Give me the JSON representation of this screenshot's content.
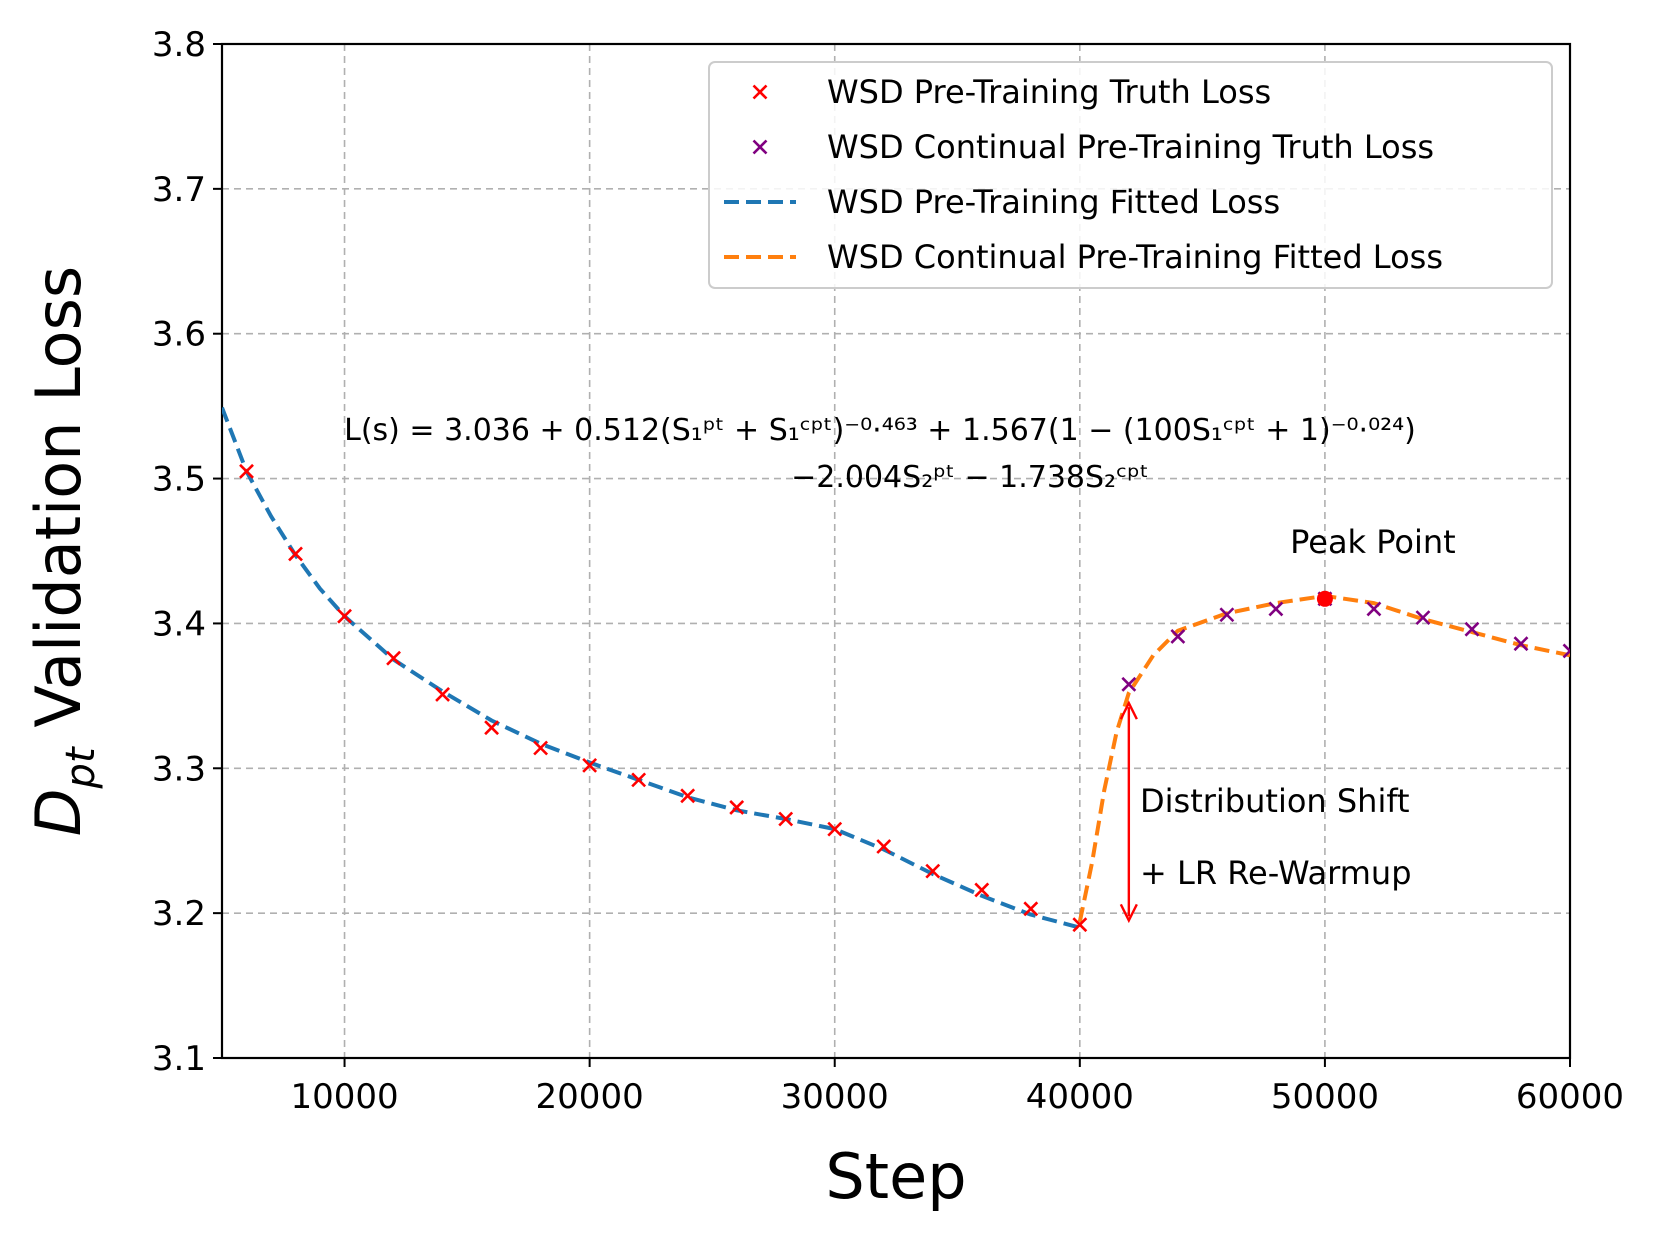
{
  "chart_data": {
    "type": "line",
    "xlabel": "Step",
    "ylabel_main": "D",
    "ylabel_sub": "pt",
    "ylabel_rest": " Validation Loss",
    "xlim": [
      5000,
      60000
    ],
    "ylim": [
      3.1,
      3.8
    ],
    "xticks": [
      10000,
      20000,
      30000,
      40000,
      50000,
      60000
    ],
    "yticks": [
      3.1,
      3.2,
      3.3,
      3.4,
      3.5,
      3.6,
      3.7,
      3.8
    ],
    "xtick_labels": [
      "10000",
      "20000",
      "30000",
      "40000",
      "50000",
      "60000"
    ],
    "ytick_labels": [
      "3.1",
      "3.2",
      "3.3",
      "3.4",
      "3.5",
      "3.6",
      "3.7",
      "3.8"
    ],
    "grid": true,
    "legend_position": "top-right",
    "series": [
      {
        "name": "WSD Pre-Training Truth Loss",
        "kind": "scatter",
        "marker": "x",
        "color": "#ff0000",
        "x": [
          6000,
          8000,
          10000,
          12000,
          14000,
          16000,
          18000,
          20000,
          22000,
          24000,
          26000,
          28000,
          30000,
          32000,
          34000,
          36000,
          38000,
          40000
        ],
        "y": [
          3.505,
          3.448,
          3.405,
          3.376,
          3.351,
          3.328,
          3.314,
          3.302,
          3.292,
          3.281,
          3.273,
          3.265,
          3.258,
          3.246,
          3.229,
          3.216,
          3.203,
          3.192
        ]
      },
      {
        "name": "WSD Continual Pre-Training Truth Loss",
        "kind": "scatter",
        "marker": "x",
        "color": "#800080",
        "x": [
          42000,
          44000,
          46000,
          48000,
          50000,
          52000,
          54000,
          56000,
          58000,
          60000
        ],
        "y": [
          3.358,
          3.391,
          3.406,
          3.41,
          3.417,
          3.41,
          3.404,
          3.396,
          3.386,
          3.381
        ]
      },
      {
        "name": "WSD Pre-Training Fitted Loss",
        "kind": "line",
        "dash": true,
        "color": "#1f77b4",
        "x": [
          5000,
          6000,
          7000,
          8000,
          9000,
          10000,
          12000,
          14000,
          16000,
          18000,
          20000,
          22000,
          24000,
          26000,
          28000,
          30000,
          32000,
          34000,
          36000,
          38000,
          40000
        ],
        "y": [
          3.549,
          3.505,
          3.474,
          3.447,
          3.424,
          3.405,
          3.375,
          3.353,
          3.333,
          3.317,
          3.304,
          3.292,
          3.28,
          3.271,
          3.265,
          3.258,
          3.244,
          3.227,
          3.212,
          3.199,
          3.19
        ]
      },
      {
        "name": "WSD Continual Pre-Training Fitted Loss",
        "kind": "line",
        "dash": true,
        "color": "#ff7f0e",
        "x": [
          40000,
          40500,
          41000,
          41500,
          42000,
          43000,
          44000,
          46000,
          48000,
          50000,
          52000,
          54000,
          56000,
          58000,
          60000
        ],
        "y": [
          3.194,
          3.235,
          3.285,
          3.325,
          3.352,
          3.378,
          3.395,
          3.407,
          3.414,
          3.419,
          3.414,
          3.403,
          3.394,
          3.385,
          3.378
        ]
      }
    ],
    "peak_point": {
      "x": 50000,
      "y": 3.417,
      "label": "Peak Point",
      "color": "#ff0000"
    },
    "shift_arrow": {
      "x": 42000,
      "y_top": 3.345,
      "y_bottom": 3.195,
      "color": "#ff0000"
    },
    "annotations": {
      "distribution_shift": "Distribution Shift",
      "lr_rewarmup": "+ LR Re-Warmup"
    },
    "formula": {
      "line1": "L(s) = 3.036 + 0.512(S₁ᵖᵗ + S₁ᶜᵖᵗ)⁻⁰·⁴⁶³ + 1.567(1 − (100S₁ᶜᵖᵗ + 1)⁻⁰·⁰²⁴)",
      "line2": "−2.004S₂ᵖᵗ − 1.738S₂ᶜᵖᵗ"
    }
  }
}
